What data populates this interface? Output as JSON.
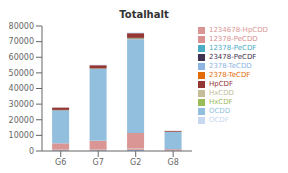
{
  "chart_data": {
    "type": "bar",
    "title": "Totalhalt",
    "stacked": true,
    "grid": false,
    "legend": "right",
    "categories": [
      "G6",
      "G7",
      "G2",
      "G8"
    ],
    "series": [
      {
        "name": "2378-TeCDD",
        "color": "#8eb4e3",
        "values": [
          500,
          500,
          800,
          200
        ]
      },
      {
        "name": "12378-PeCDD",
        "color": "#d89090",
        "values": [
          300,
          400,
          600,
          100
        ]
      },
      {
        "name": "HxCDD",
        "color": "#c4bd97",
        "values": [
          100,
          100,
          200,
          50
        ]
      },
      {
        "name": "1234678-HpCDD",
        "color": "#d99694",
        "values": [
          4000,
          5500,
          10000,
          800
        ]
      },
      {
        "name": "OCDD",
        "color": "#92BFDD",
        "values": [
          21000,
          46000,
          60000,
          11000
        ]
      },
      {
        "name": "2378-TeCDF",
        "color": "#e36c09",
        "values": [
          100,
          100,
          200,
          50
        ]
      },
      {
        "name": "12378-PeCDF",
        "color": "#4bacc6",
        "values": [
          100,
          100,
          200,
          50
        ]
      },
      {
        "name": "23478-PeCDF",
        "color": "#403151",
        "values": [
          100,
          100,
          200,
          50
        ]
      },
      {
        "name": "HxCDF",
        "color": "#9bbb59",
        "values": [
          100,
          100,
          200,
          50
        ]
      },
      {
        "name": "HpCDF",
        "color": "#943634",
        "values": [
          1500,
          2000,
          3000,
          500
        ]
      },
      {
        "name": "OCDF",
        "color": "#c6d9f1",
        "values": [
          200,
          300,
          400,
          100
        ]
      }
    ],
    "ylim": [
      0,
      80000
    ],
    "yticks": [
      0,
      10000,
      20000,
      30000,
      40000,
      50000,
      60000,
      70000,
      80000
    ]
  }
}
